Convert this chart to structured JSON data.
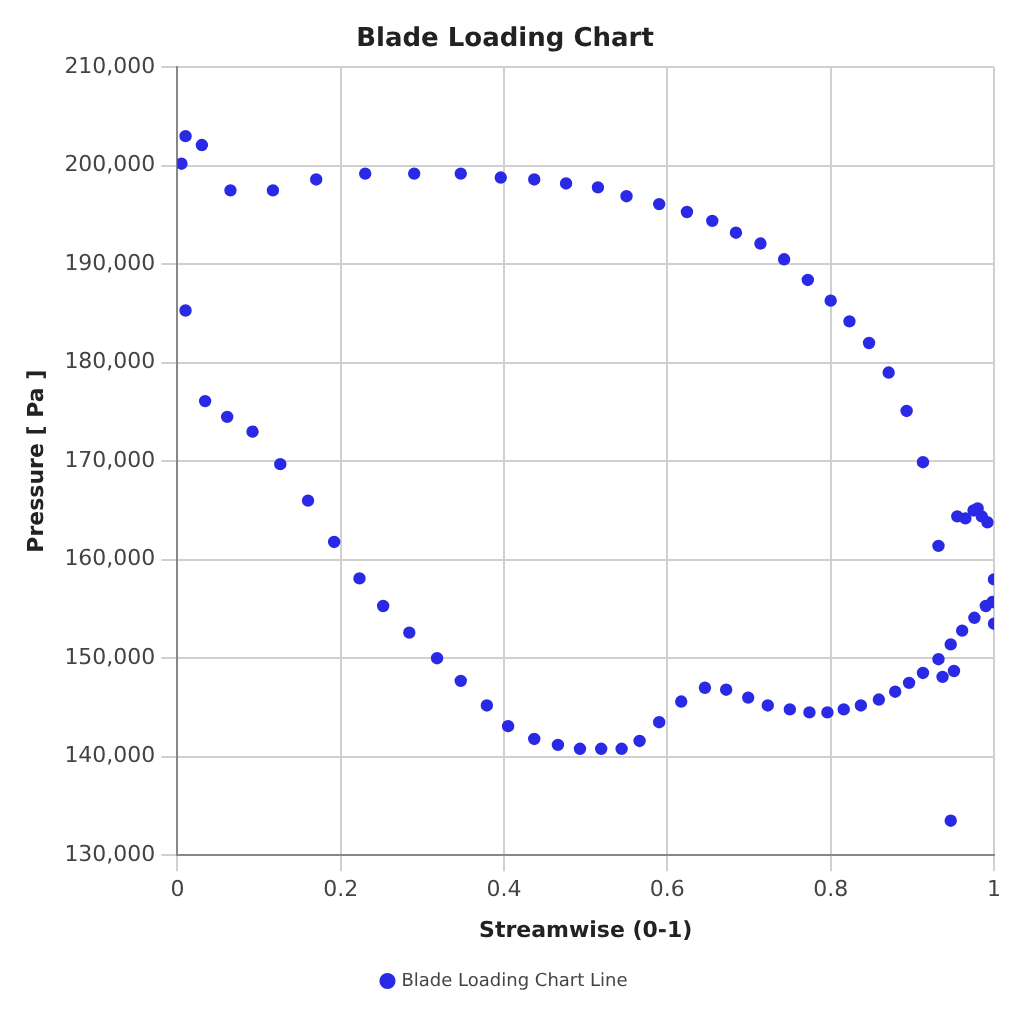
{
  "chart_data": {
    "type": "scatter",
    "title": "Blade Loading Chart",
    "xlabel": "Streamwise (0-1)",
    "ylabel": "Pressure [ Pa ]",
    "xlim": [
      0,
      1
    ],
    "xticks": [
      0,
      0.2,
      0.4,
      0.6,
      0.8,
      1
    ],
    "ylim": [
      130000,
      210000
    ],
    "yticks": [
      {
        "value": 130000,
        "label": "130,000"
      },
      {
        "value": 140000,
        "label": "140,000"
      },
      {
        "value": 150000,
        "label": "150,000"
      },
      {
        "value": 160000,
        "label": "160,000"
      },
      {
        "value": 170000,
        "label": "170,000"
      },
      {
        "value": 180000,
        "label": "180,000"
      },
      {
        "value": 190000,
        "label": "190,000"
      },
      {
        "value": 200000,
        "label": "200,000"
      },
      {
        "value": 210000,
        "label": "210,000"
      }
    ],
    "grid": true,
    "legend": "bottom",
    "marker": "circle",
    "series": [
      {
        "name": "Blade Loading Chart Line",
        "color": "#2a2ae6",
        "x": [
          0.005,
          0.01,
          0.03,
          0.065,
          0.117,
          0.17,
          0.23,
          0.29,
          0.347,
          0.396,
          0.437,
          0.476,
          0.515,
          0.55,
          0.59,
          0.624,
          0.655,
          0.684,
          0.714,
          0.743,
          0.772,
          0.8,
          0.823,
          0.847,
          0.871,
          0.893,
          0.913,
          0.932,
          0.955,
          0.965,
          0.975,
          0.98,
          0.985,
          0.992,
          0.01,
          0.034,
          0.061,
          0.092,
          0.126,
          0.16,
          0.192,
          0.223,
          0.252,
          0.284,
          0.318,
          0.347,
          0.379,
          0.405,
          0.437,
          0.466,
          0.493,
          0.519,
          0.544,
          0.566,
          0.59,
          0.617,
          0.646,
          0.672,
          0.699,
          0.723,
          0.75,
          0.774,
          0.796,
          0.816,
          0.837,
          0.859,
          0.879,
          0.896,
          0.913,
          0.932,
          0.947,
          0.961,
          0.976,
          0.99,
          0.998,
          1.0,
          1.0,
          0.937,
          0.951,
          0.947
        ],
        "values": [
          200200,
          203000,
          202100,
          197500,
          197500,
          198600,
          199200,
          199200,
          199200,
          198800,
          198600,
          198200,
          197800,
          196900,
          196100,
          195300,
          194400,
          193200,
          192100,
          190500,
          188400,
          186300,
          184200,
          182000,
          179000,
          175100,
          169900,
          161400,
          164400,
          164200,
          165000,
          165200,
          164400,
          163800,
          185300,
          176100,
          174500,
          173000,
          169700,
          166000,
          161800,
          158100,
          155300,
          152600,
          150000,
          147700,
          145200,
          143100,
          141800,
          141200,
          140800,
          140800,
          140800,
          141600,
          143500,
          145600,
          147000,
          146800,
          146000,
          145200,
          144800,
          144500,
          144500,
          144800,
          145200,
          145800,
          146600,
          147500,
          148500,
          149900,
          151400,
          152800,
          154100,
          155300,
          155700,
          158000,
          153500,
          148100,
          148700,
          133500
        ]
      }
    ]
  }
}
